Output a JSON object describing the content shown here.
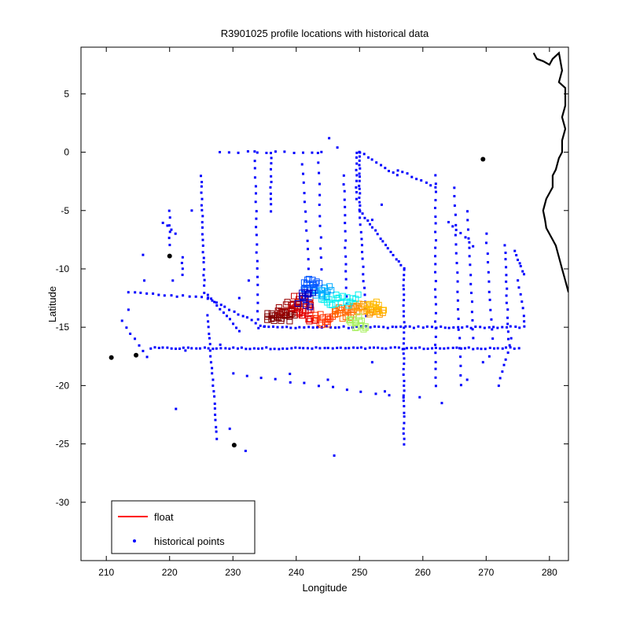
{
  "chart_data": {
    "type": "scatter",
    "title": "R3901025 profile locations with historical data",
    "xlabel": "Longitude",
    "ylabel": "Latitude",
    "xlim": [
      206,
      283
    ],
    "ylim": [
      -35,
      9
    ],
    "xticks": [
      210,
      220,
      230,
      240,
      250,
      260,
      270,
      280
    ],
    "yticks": [
      5,
      0,
      -5,
      -10,
      -15,
      -20,
      -25,
      -30
    ],
    "grid": false,
    "legend_position": "bottom-left",
    "legend": [
      {
        "label": "float",
        "color": "#ff0000",
        "marker": "line"
      },
      {
        "label": "historical points",
        "color": "#0000ff",
        "marker": "dot"
      }
    ],
    "series": [
      {
        "name": "historical points",
        "color": "#0000ff",
        "tracks": [
          {
            "x": [
              217,
              274.5
            ],
            "y": [
              -16.8,
              -16.8
            ],
            "step": 0.65
          },
          {
            "x": [
              235,
              276
            ],
            "y": [
              -15,
              -15
            ],
            "step": 0.7
          },
          {
            "x": [
              213.5,
              226
            ],
            "y": [
              -12,
              -12.5
            ],
            "step": 1.0
          },
          {
            "x": [
              226,
              235
            ],
            "y": [
              -12.5,
              -15
            ],
            "step": 0.7
          },
          {
            "x": [
              212.5,
              216.5
            ],
            "y": [
              -14.5,
              -17.5
            ],
            "step": 0.8
          },
          {
            "x": [
              225,
              225.5
            ],
            "y": [
              -2,
              -12
            ],
            "step": 0.5
          },
          {
            "x": [
              226,
              227.5
            ],
            "y": [
              -14,
              -24.5
            ],
            "step": 0.5
          },
          {
            "x": [
              226,
              231
            ],
            "y": [
              -12.2,
              -15.3
            ],
            "step": 0.6
          },
          {
            "x": [
              236,
              236
            ],
            "y": [
              0,
              -5
            ],
            "step": 0.5
          },
          {
            "x": [
              257,
              257
            ],
            "y": [
              -10,
              -25
            ],
            "step": 0.45
          },
          {
            "x": [
              250,
              250
            ],
            "y": [
              0,
              -5
            ],
            "step": 0.35
          },
          {
            "x": [
              249.5,
              249.5
            ],
            "y": [
              0,
              -4
            ],
            "step": 0.5
          },
          {
            "x": [
              250,
              257
            ],
            "y": [
              -5,
              -10
            ],
            "step": 0.5
          },
          {
            "x": [
              250,
              251
            ],
            "y": [
              -5,
              -14
            ],
            "step": 0.6
          },
          {
            "x": [
              247.5,
              248
            ],
            "y": [
              -2,
              -13
            ],
            "step": 0.7
          },
          {
            "x": [
              241,
              242
            ],
            "y": [
              -1,
              -10
            ],
            "step": 0.8
          },
          {
            "x": [
              233.5,
              234
            ],
            "y": [
              0,
              -15
            ],
            "step": 0.7
          },
          {
            "x": [
              243.5,
              244
            ],
            "y": [
              0,
              -10
            ],
            "step": 0.9
          },
          {
            "x": [
              262,
              262
            ],
            "y": [
              -2,
              -20
            ],
            "step": 0.7
          },
          {
            "x": [
              265,
              266
            ],
            "y": [
              -3,
              -20
            ],
            "step": 0.8
          },
          {
            "x": [
              267,
              268
            ],
            "y": [
              -5,
              -16
            ],
            "step": 0.8
          },
          {
            "x": [
              270,
              271
            ],
            "y": [
              -7,
              -16
            ],
            "step": 0.8
          },
          {
            "x": [
              273,
              273.5
            ],
            "y": [
              -8,
              -16
            ],
            "step": 0.6
          },
          {
            "x": [
              274.5,
              276
            ],
            "y": [
              -8.5,
              -10.5
            ],
            "step": 0.4
          },
          {
            "x": [
              275,
              276
            ],
            "y": [
              -11,
              -14
            ],
            "step": 0.6
          },
          {
            "x": [
              220,
              220
            ],
            "y": [
              -5,
              -8
            ],
            "step": 0.6
          },
          {
            "x": [
              222,
              222
            ],
            "y": [
              -9,
              -10.5
            ],
            "step": 0.5
          },
          {
            "x": [
              274,
              272
            ],
            "y": [
              -16,
              -20
            ],
            "step": 0.6
          },
          {
            "x": [
              228,
              244
            ],
            "y": [
              0,
              0
            ],
            "step": 1.5
          },
          {
            "x": [
              250,
              256
            ],
            "y": [
              0,
              -2
            ],
            "step": 0.7
          },
          {
            "x": [
              256,
              262
            ],
            "y": [
              -1.5,
              -3
            ],
            "step": 0.8
          },
          {
            "x": [
              230,
              257
            ],
            "y": [
              -19,
              -21
            ],
            "step": 2.2
          },
          {
            "x": [
              264,
              268
            ],
            "y": [
              -6,
              -8
            ],
            "step": 0.8
          },
          {
            "x": [
              219,
              221
            ],
            "y": [
              -6,
              -7
            ],
            "step": 0.7
          }
        ],
        "points": [
          [
            215.8,
            -8.8
          ],
          [
            216,
            -11
          ],
          [
            213.5,
            -13.5
          ],
          [
            223.5,
            -5
          ],
          [
            221,
            -22
          ],
          [
            229.5,
            -23.7
          ],
          [
            232,
            -25.6
          ],
          [
            246,
            -26
          ],
          [
            245.2,
            1.2
          ],
          [
            246.5,
            0.4
          ],
          [
            252,
            -5.8
          ],
          [
            253.5,
            -4.5
          ],
          [
            259.5,
            -21
          ],
          [
            263,
            -21.5
          ],
          [
            267,
            -19.5
          ],
          [
            269.5,
            -18
          ],
          [
            270.5,
            -17.5
          ],
          [
            275.2,
            -16.8
          ],
          [
            276,
            -14.5
          ],
          [
            231,
            -12.5
          ],
          [
            232.5,
            -11
          ],
          [
            220.5,
            -11
          ],
          [
            222.5,
            -17
          ],
          [
            228,
            -16.5
          ],
          [
            239,
            -19
          ],
          [
            245,
            -19.5
          ],
          [
            252,
            -18
          ],
          [
            254,
            -20.5
          ]
        ]
      },
      {
        "name": "float",
        "color": "#ff0000",
        "cluster_colors": [
          "#800000",
          "#b30000",
          "#e62200",
          "#ff6600",
          "#ff9900",
          "#ffbb00",
          "#a8f060",
          "#00eeee",
          "#00aaff",
          "#0055ff",
          "#0000cc"
        ],
        "clusters": [
          {
            "x": [
              235.2,
              239.5
            ],
            "y": [
              -13.8,
              -14.5
            ],
            "color": "#800000",
            "n": 22
          },
          {
            "x": [
              237,
              240.5
            ],
            "y": [
              -12.8,
              -14
            ],
            "color": "#990000",
            "n": 16
          },
          {
            "x": [
              239.5,
              242.5
            ],
            "y": [
              -12.3,
              -13.7
            ],
            "color": "#cc0000",
            "n": 18
          },
          {
            "x": [
              240.5,
              243
            ],
            "y": [
              -13.5,
              -14.5
            ],
            "color": "#e60000",
            "n": 12
          },
          {
            "x": [
              243,
              246
            ],
            "y": [
              -13.8,
              -14.8
            ],
            "color": "#ff3300",
            "n": 14
          },
          {
            "x": [
              246,
              249.5
            ],
            "y": [
              -13.2,
              -14.3
            ],
            "color": "#ff6600",
            "n": 18
          },
          {
            "x": [
              249,
              253.5
            ],
            "y": [
              -13,
              -14
            ],
            "color": "#ff9900",
            "n": 20
          },
          {
            "x": [
              251,
              253.8
            ],
            "y": [
              -12.8,
              -13.8
            ],
            "color": "#ffbb00",
            "n": 12
          },
          {
            "x": [
              248.5,
              250.8
            ],
            "y": [
              -14,
              -15.3
            ],
            "color": "#a8f060",
            "n": 14
          },
          {
            "x": [
              244,
              249.5
            ],
            "y": [
              -12.2,
              -13.2
            ],
            "color": "#00eeee",
            "n": 20
          },
          {
            "x": [
              242.5,
              245.5
            ],
            "y": [
              -11.5,
              -12.5
            ],
            "color": "#00aaff",
            "n": 16
          },
          {
            "x": [
              241,
              243.5
            ],
            "y": [
              -10.8,
              -12
            ],
            "color": "#0055ff",
            "n": 16
          },
          {
            "x": [
              240.5,
              242.5
            ],
            "y": [
              -12,
              -13.3
            ],
            "color": "#0000cc",
            "n": 12
          }
        ]
      },
      {
        "name": "coastline",
        "color": "#000000",
        "line": [
          [
            277.5,
            8.5
          ],
          [
            278,
            8
          ],
          [
            279,
            7.8
          ],
          [
            280,
            7.5
          ],
          [
            280.5,
            8
          ],
          [
            281.5,
            8.5
          ],
          [
            282,
            7
          ],
          [
            281.5,
            6
          ],
          [
            282.5,
            5.5
          ],
          [
            282.5,
            4
          ],
          [
            282,
            3
          ],
          [
            282.5,
            2
          ],
          [
            282,
            1
          ],
          [
            282,
            0
          ],
          [
            281.5,
            -0.5
          ],
          [
            281,
            -1.5
          ],
          [
            280.5,
            -2
          ],
          [
            280.5,
            -3
          ],
          [
            279.5,
            -4
          ],
          [
            279,
            -5
          ],
          [
            279.3,
            -5.8
          ],
          [
            279.5,
            -6.5
          ],
          [
            280.5,
            -7.5
          ],
          [
            281,
            -8
          ],
          [
            281.5,
            -9
          ],
          [
            282,
            -10
          ],
          [
            282.5,
            -11
          ],
          [
            283,
            -12
          ]
        ],
        "islands": [
          [
            269.5,
            -0.6
          ],
          [
            210.8,
            -17.6
          ],
          [
            214.7,
            -17.4
          ],
          [
            220,
            -8.9
          ],
          [
            230.2,
            -25.1
          ]
        ]
      }
    ]
  }
}
